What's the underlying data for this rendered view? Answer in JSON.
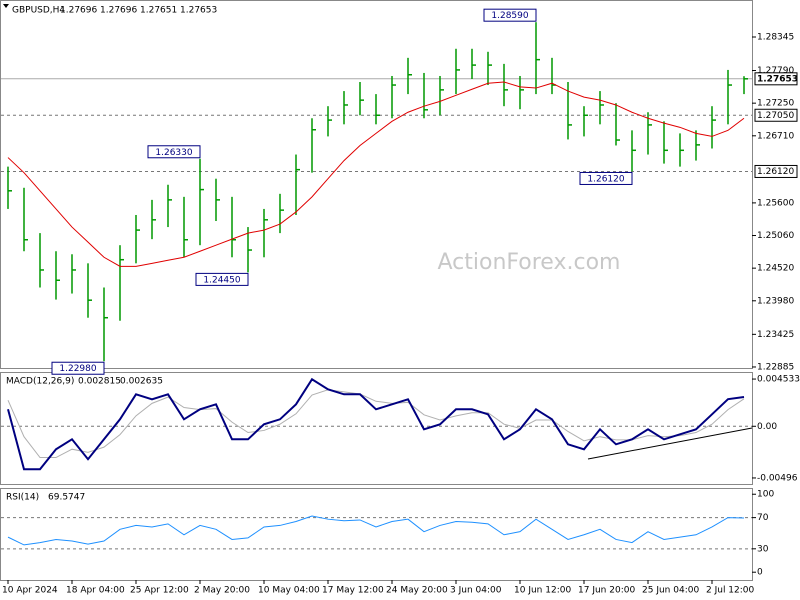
{
  "chart_data": [
    {
      "type": "ohlc",
      "title": "GBPUSD,H4",
      "quote": [
        1.27696,
        1.27696,
        1.27651,
        1.27653
      ],
      "watermark": "ActionForex.com",
      "categories": [
        "10 Apr 2024",
        null,
        null,
        null,
        "18 Apr 04:00",
        null,
        null,
        null,
        "25 Apr 12:00",
        null,
        null,
        null,
        "2 May 20:00",
        null,
        null,
        null,
        "10 May 04:00",
        null,
        null,
        null,
        "17 May 12:00",
        null,
        null,
        null,
        "24 May 20:00",
        null,
        null,
        null,
        "3 Jun 04:00",
        null,
        null,
        null,
        "10 Jun 12:00",
        null,
        null,
        null,
        "17 Jun 20:00",
        null,
        null,
        null,
        "25 Jun 04:00",
        null,
        null,
        null,
        "2 Jul 12:00",
        null,
        null
      ],
      "high": [
        1.262,
        1.2585,
        1.251,
        1.248,
        1.2475,
        1.246,
        1.242,
        1.249,
        1.254,
        1.2565,
        1.259,
        1.257,
        1.2633,
        1.26,
        1.257,
        1.252,
        1.255,
        1.2575,
        1.264,
        1.27,
        1.272,
        1.2745,
        1.276,
        1.274,
        1.277,
        1.28,
        1.2775,
        1.277,
        1.2815,
        1.2815,
        1.281,
        1.279,
        1.277,
        1.2859,
        1.28,
        1.276,
        1.272,
        1.2745,
        1.2725,
        1.268,
        1.271,
        1.2695,
        1.2675,
        1.268,
        1.272,
        1.278,
        1.27696
      ],
      "low": [
        1.255,
        1.248,
        1.242,
        1.24,
        1.241,
        1.237,
        1.2298,
        1.2365,
        1.246,
        1.25,
        1.252,
        1.247,
        1.249,
        1.253,
        1.247,
        1.2445,
        1.247,
        1.251,
        1.254,
        1.261,
        1.267,
        1.269,
        1.2705,
        1.269,
        1.27,
        1.274,
        1.27,
        1.2705,
        1.274,
        1.2765,
        1.2755,
        1.272,
        1.2715,
        1.274,
        1.274,
        1.2665,
        1.267,
        1.269,
        1.2655,
        1.2612,
        1.264,
        1.2625,
        1.262,
        1.263,
        1.265,
        1.269,
        1.274
      ],
      "close": [
        1.258,
        1.2499,
        1.2449,
        1.2432,
        1.2449,
        1.2399,
        1.237,
        1.2466,
        1.2515,
        1.2532,
        1.2565,
        1.2499,
        1.2582,
        1.2565,
        1.2499,
        1.2482,
        1.2532,
        1.2548,
        1.2615,
        1.2681,
        1.2697,
        1.2722,
        1.273,
        1.2705,
        1.2755,
        1.2772,
        1.2714,
        1.2747,
        1.278,
        1.2788,
        1.2788,
        1.2747,
        1.2747,
        1.2797,
        1.2755,
        1.2689,
        1.2705,
        1.2722,
        1.2664,
        1.2647,
        1.2689,
        1.2647,
        1.2647,
        1.2656,
        1.2697,
        1.2755,
        1.27653
      ],
      "color": "#009900",
      "ma": {
        "color": "#e00000",
        "values": [
          1.2635,
          1.261,
          1.258,
          1.255,
          1.252,
          1.2495,
          1.247,
          1.2455,
          1.2455,
          1.246,
          1.2465,
          1.247,
          1.248,
          1.249,
          1.25,
          1.251,
          1.2515,
          1.2525,
          1.2545,
          1.257,
          1.26,
          1.263,
          1.2655,
          1.2675,
          1.2695,
          1.271,
          1.272,
          1.2728,
          1.2738,
          1.2748,
          1.2758,
          1.276,
          1.2752,
          1.275,
          1.2758,
          1.2745,
          1.2735,
          1.273,
          1.2722,
          1.271,
          1.27,
          1.2692,
          1.2685,
          1.2675,
          1.267,
          1.268,
          1.27
        ]
      },
      "ylim": [
        1.22868,
        1.28957
      ],
      "yticks": [
        1.28345,
        {
          "value": 1.2779,
          "label": "1.27790"
        },
        {
          "value": 1.2725,
          "label": "1.27250"
        },
        {
          "value": 1.2671,
          "label": "1.26710"
        },
        {
          "value": 1.256,
          "label": "1.25600"
        },
        {
          "value": 1.2506,
          "label": "1.25060"
        },
        {
          "value": 1.2452,
          "label": "1.24520"
        },
        {
          "value": 1.2398,
          "label": "1.23980"
        },
        1.23425,
        1.22885
      ],
      "levels": [
        {
          "value": 1.2705,
          "label": "1.27050"
        },
        {
          "value": 1.2612,
          "label": "1.26120"
        }
      ],
      "annotations": [
        {
          "value": 1.2859,
          "label": "1.28590"
        },
        {
          "value": 1.2633,
          "label": "1.26330"
        },
        {
          "value": 1.2445,
          "label": "1.24450"
        },
        {
          "value": 1.2298,
          "label": "1.22980"
        },
        {
          "value": 1.2612,
          "label": "1.26120"
        }
      ]
    },
    {
      "type": "line",
      "title": "MACD(12,26,9)",
      "series": [
        {
          "color": "#000080",
          "values": [
            0.00163,
            -0.00412,
            -0.00412,
            -0.00221,
            -0.00125,
            -0.00316,
            -0.00125,
            0.00067,
            0.00307,
            0.00259,
            0.00307,
            0.00067,
            0.00163,
            0.00211,
            -0.00125,
            -0.00125,
            0.00019,
            0.00067,
            0.00211,
            0.00451,
            0.00355,
            0.00307,
            0.00307,
            0.00163,
            0.00211,
            0.00259,
            -0.00029,
            0.00019,
            0.00163,
            0.00163,
            0.00115,
            -0.00125,
            -0.00029,
            0.00163,
            0.00067,
            -0.00173,
            -0.00221,
            -0.00029,
            -0.00173,
            -0.00125,
            -0.00029,
            -0.00125,
            -0.00077,
            -0.00029,
            0.00115,
            0.0026,
            0.002815
          ]
        },
        {
          "color": "#b0b0b0",
          "values": [
            0.0025,
            -0.001,
            -0.003,
            -0.003,
            -0.0022,
            -0.0025,
            -0.002,
            -0.0008,
            0.001,
            0.0022,
            0.0028,
            0.0018,
            0.0016,
            0.0017,
            0.0004,
            -0.0006,
            -0.0004,
            0.0002,
            0.0012,
            0.003,
            0.0035,
            0.0033,
            0.0031,
            0.0024,
            0.0022,
            0.0023,
            0.0011,
            0.0006,
            0.001,
            0.0013,
            0.0013,
            0.0002,
            -0.0002,
            0.0006,
            0.0006,
            -0.0005,
            -0.0014,
            -0.001,
            -0.0013,
            -0.0013,
            -0.0009,
            -0.001,
            -0.0009,
            -0.0006,
            0.0002,
            0.0016,
            0.002635
          ]
        }
      ],
      "ylim": [
        -0.00554,
        0.00521
      ],
      "yticks": [
        0.004533,
        {
          "value": 0,
          "label": "0.00"
        },
        -0.00496
      ],
      "levels": [
        0
      ]
    },
    {
      "type": "line",
      "title": "RSI(14)",
      "series": [
        {
          "color": "#1e90ff",
          "values": [
            45,
            35,
            38,
            42,
            40,
            36,
            40,
            55,
            60,
            58,
            62,
            48,
            60,
            55,
            42,
            44,
            58,
            60,
            65,
            72,
            68,
            66,
            67,
            58,
            65,
            68,
            52,
            60,
            65,
            64,
            62,
            48,
            52,
            68,
            55,
            42,
            48,
            55,
            42,
            38,
            52,
            42,
            45,
            48,
            58,
            70,
            69.5747
          ]
        }
      ],
      "ylim": [
        -10,
        108
      ],
      "yticks": [
        100,
        70,
        30,
        0
      ],
      "levels": [
        70,
        30
      ]
    }
  ]
}
